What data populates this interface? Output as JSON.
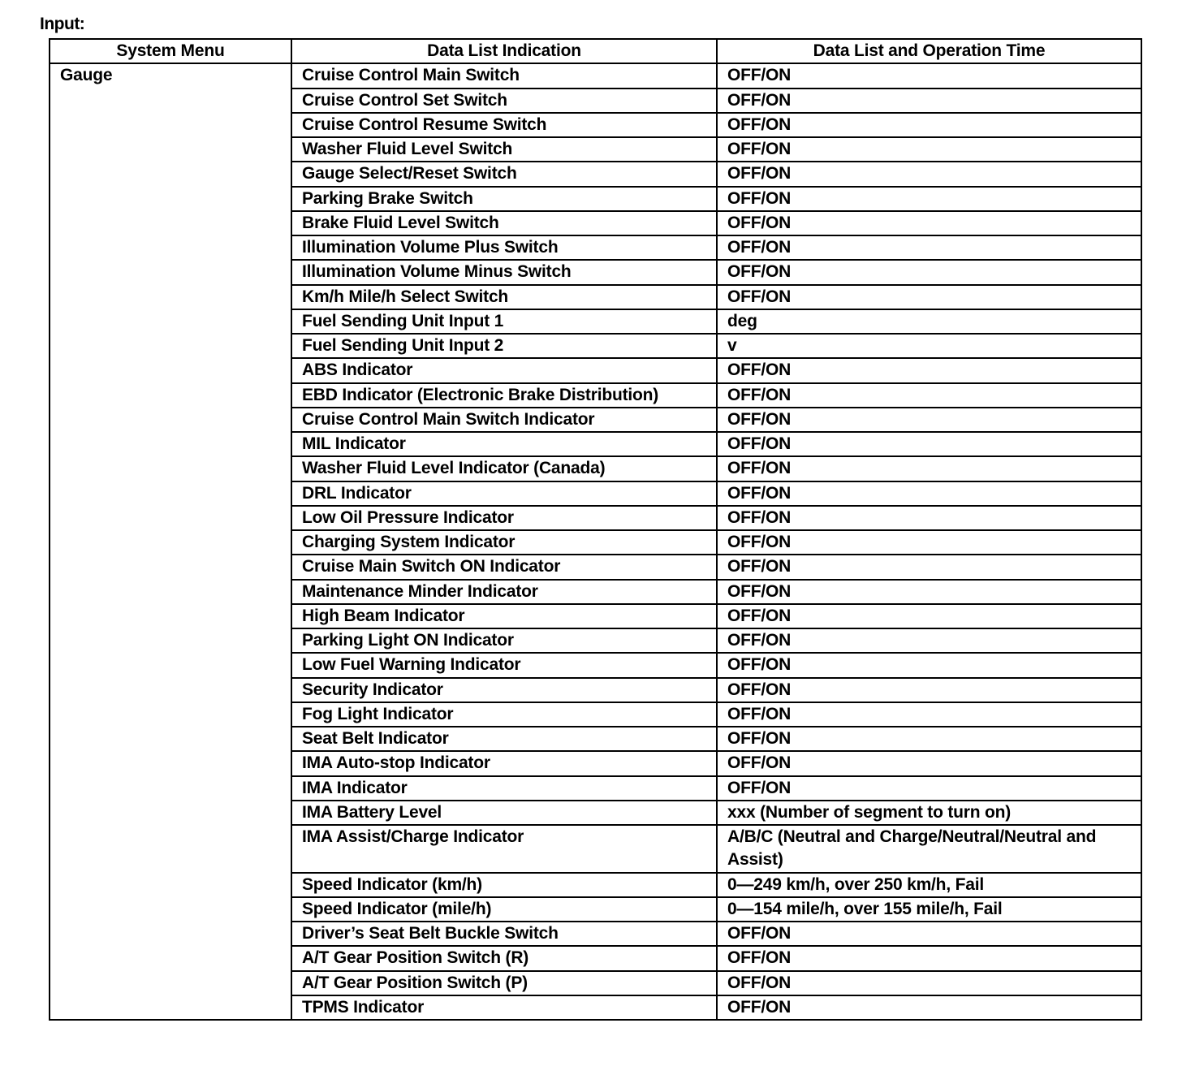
{
  "title": "Input:",
  "headers": [
    "System Menu",
    "Data List Indication",
    "Data List and Operation Time"
  ],
  "system_menu": "Gauge",
  "rows": [
    [
      "Cruise Control Main Switch",
      "OFF/ON"
    ],
    [
      "Cruise Control Set Switch",
      "OFF/ON"
    ],
    [
      "Cruise Control Resume Switch",
      "OFF/ON"
    ],
    [
      "Washer Fluid Level Switch",
      "OFF/ON"
    ],
    [
      "Gauge Select/Reset Switch",
      "OFF/ON"
    ],
    [
      "Parking Brake Switch",
      "OFF/ON"
    ],
    [
      "Brake Fluid Level Switch",
      "OFF/ON"
    ],
    [
      "Illumination Volume Plus Switch",
      "OFF/ON"
    ],
    [
      "Illumination Volume Minus Switch",
      "OFF/ON"
    ],
    [
      "Km/h Mile/h Select Switch",
      "OFF/ON"
    ],
    [
      "Fuel Sending Unit Input 1",
      "deg"
    ],
    [
      "Fuel Sending Unit Input 2",
      "v"
    ],
    [
      "ABS Indicator",
      "OFF/ON"
    ],
    [
      "EBD Indicator (Electronic Brake Distribution)",
      "OFF/ON"
    ],
    [
      "Cruise Control Main Switch Indicator",
      "OFF/ON"
    ],
    [
      "MIL Indicator",
      "OFF/ON"
    ],
    [
      "Washer Fluid Level Indicator (Canada)",
      "OFF/ON"
    ],
    [
      "DRL Indicator",
      "OFF/ON"
    ],
    [
      "Low Oil Pressure Indicator",
      "OFF/ON"
    ],
    [
      "Charging System Indicator",
      "OFF/ON"
    ],
    [
      "Cruise Main Switch ON Indicator",
      "OFF/ON"
    ],
    [
      "Maintenance Minder Indicator",
      "OFF/ON"
    ],
    [
      "High Beam Indicator",
      "OFF/ON"
    ],
    [
      "Parking Light ON Indicator",
      "OFF/ON"
    ],
    [
      "Low Fuel Warning Indicator",
      "OFF/ON"
    ],
    [
      "Security Indicator",
      "OFF/ON"
    ],
    [
      "Fog Light Indicator",
      "OFF/ON"
    ],
    [
      "Seat Belt Indicator",
      "OFF/ON"
    ],
    [
      "IMA Auto-stop Indicator",
      "OFF/ON"
    ],
    [
      "IMA Indicator",
      "OFF/ON"
    ],
    [
      "IMA Battery Level",
      "xxx (Number of segment to turn on)"
    ],
    [
      "IMA Assist/Charge Indicator",
      "A/B/C (Neutral and Charge/Neutral/Neutral and Assist)"
    ],
    [
      "Speed Indicator (km/h)",
      "0—249 km/h, over 250 km/h, Fail"
    ],
    [
      "Speed Indicator (mile/h)",
      "0—154 mile/h, over 155 mile/h, Fail"
    ],
    [
      "Driver’s Seat Belt Buckle Switch",
      "OFF/ON"
    ],
    [
      "A/T Gear Position Switch (R)",
      "OFF/ON"
    ],
    [
      "A/T Gear Position Switch (P)",
      "OFF/ON"
    ],
    [
      "TPMS Indicator",
      "OFF/ON"
    ]
  ]
}
